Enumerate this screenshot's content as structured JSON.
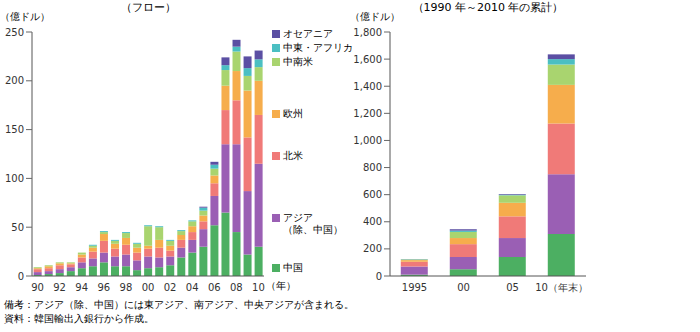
{
  "chart_data": [
    {
      "type": "bar",
      "stacked": true,
      "title": "（フロー）",
      "ylabel": "（億ドル）",
      "xlabel": "（年）",
      "categories": [
        "90",
        null,
        "92",
        null,
        "94",
        null,
        "96",
        null,
        "98",
        null,
        "00",
        null,
        "02",
        null,
        "04",
        null,
        "06",
        null,
        "08",
        null,
        "10"
      ],
      "ylim": [
        0,
        250
      ],
      "yticks": [
        0,
        50,
        100,
        150,
        200,
        250
      ],
      "grid": false,
      "series": [
        {
          "name": "中国",
          "color": "#4caf62",
          "values": [
            1,
            2,
            3,
            5,
            8,
            10,
            14,
            10,
            10,
            6,
            8,
            9,
            11,
            19,
            24,
            30,
            52,
            65,
            45,
            22,
            30
          ]
        },
        {
          "name": "アジア（除、中国）",
          "color": "#9a5fb4",
          "values": [
            3,
            3,
            4,
            4,
            6,
            8,
            10,
            10,
            12,
            10,
            12,
            10,
            9,
            10,
            13,
            18,
            30,
            70,
            90,
            65,
            85
          ]
        },
        {
          "name": "北米",
          "color": "#f07a78",
          "values": [
            3,
            3,
            4,
            3,
            5,
            7,
            12,
            8,
            10,
            8,
            8,
            10,
            6,
            8,
            8,
            8,
            13,
            35,
            45,
            55,
            50
          ]
        },
        {
          "name": "欧州",
          "color": "#f6ad4c",
          "values": [
            1,
            2,
            2,
            1,
            3,
            4,
            7,
            5,
            7,
            5,
            3,
            8,
            5,
            5,
            6,
            6,
            8,
            25,
            30,
            48,
            35
          ]
        },
        {
          "name": "中南米",
          "color": "#a9d46f",
          "values": [
            1,
            1,
            1,
            1,
            2,
            2,
            2,
            3,
            5,
            4,
            20,
            13,
            5,
            4,
            5,
            5,
            7,
            16,
            20,
            15,
            14
          ]
        },
        {
          "name": "中東・アフリカ",
          "color": "#4bbfc2",
          "values": [
            0,
            0,
            0,
            0,
            0,
            1,
            1,
            1,
            1,
            1,
            1,
            1,
            1,
            1,
            1,
            3,
            4,
            5,
            5,
            8,
            8
          ]
        },
        {
          "name": "オセアニア",
          "color": "#5b4fa3",
          "values": [
            0,
            0,
            0,
            0,
            0,
            0,
            0,
            0,
            0,
            0,
            0,
            0,
            0,
            0,
            0,
            1,
            3,
            8,
            7,
            12,
            9
          ]
        }
      ]
    },
    {
      "type": "bar",
      "stacked": true,
      "title": "（1990 年～2010 年の累計）",
      "ylabel": "（億ドル）",
      "categories": [
        "1995",
        "00",
        "05",
        "10（年末）"
      ],
      "ylim": [
        0,
        1800
      ],
      "yticks": [
        0,
        200,
        400,
        600,
        800,
        {
          "value": 1000,
          "label": "1,000"
        },
        {
          "value": 1200,
          "label": "1,200"
        },
        {
          "value": 1400,
          "label": "1,400"
        },
        {
          "value": 1600,
          "label": "1,600"
        },
        {
          "value": 1800,
          "label": "1,800"
        }
      ],
      "grid": false,
      "series": [
        {
          "name": "中国",
          "color": "#4caf62",
          "values": [
            10,
            50,
            140,
            310
          ]
        },
        {
          "name": "アジア（除、中国）",
          "color": "#9a5fb4",
          "values": [
            60,
            90,
            140,
            440
          ]
        },
        {
          "name": "北米",
          "color": "#f07a78",
          "values": [
            35,
            95,
            160,
            375
          ]
        },
        {
          "name": "欧州",
          "color": "#f6ad4c",
          "values": [
            12,
            45,
            100,
            285
          ]
        },
        {
          "name": "中南米",
          "color": "#a9d46f",
          "values": [
            5,
            45,
            55,
            150
          ]
        },
        {
          "name": "中東・アフリカ",
          "color": "#4bbfc2",
          "values": [
            2,
            10,
            5,
            40
          ]
        },
        {
          "name": "オセアニア",
          "color": "#5b4fa3",
          "values": [
            1,
            10,
            5,
            35
          ]
        }
      ]
    }
  ],
  "notes": [
    "備考：アジア（除、中国）には東アジア、南アジア、中央アジアが含まれる。",
    "資料：韓国輸出入銀行から作成。"
  ]
}
